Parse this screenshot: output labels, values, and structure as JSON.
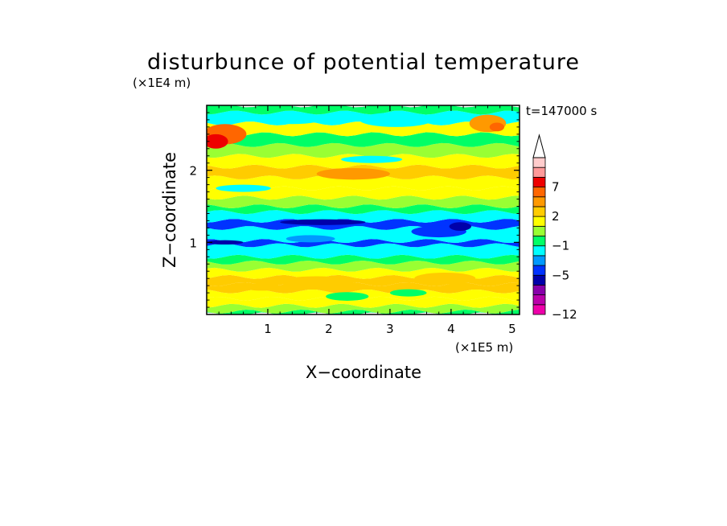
{
  "chart_data": {
    "type": "heatmap",
    "title": "disturbunce of potential temperature",
    "time_label": "t=147000 s",
    "xlabel": "X−coordinate",
    "ylabel": "Z−coordinate",
    "x_scale_label": "(×1E5 m)",
    "y_scale_label": "(×1E4 m)",
    "xlim": [
      0,
      5.12
    ],
    "ylim": [
      0,
      2.9
    ],
    "x_ticks": [
      1,
      2,
      3,
      4,
      5
    ],
    "x_tick_labels": [
      "1",
      "2",
      "3",
      "4",
      "5"
    ],
    "y_ticks": [
      1,
      2
    ],
    "y_tick_labels": [
      "1",
      "2"
    ],
    "colorbar": {
      "levels": [
        -12,
        -11,
        -9,
        -7,
        -5,
        -4,
        -3,
        -1,
        0,
        1,
        2,
        3,
        5,
        7,
        8,
        9
      ],
      "labeled_levels": [
        -12,
        -5,
        -1,
        2,
        7
      ],
      "labels": [
        "−12",
        "−5",
        "−1",
        "2",
        "7"
      ],
      "colors": [
        "#ee00aa",
        "#bb00aa",
        "#8800aa",
        "#0000aa",
        "#0033ff",
        "#0099ff",
        "#00ffff",
        "#00ff66",
        "#99ff33",
        "#ffff00",
        "#ffcc00",
        "#ff9900",
        "#ff6600",
        "#ee0000",
        "#ff9999",
        "#ffcccc"
      ],
      "extend": "max"
    },
    "bands": [
      {
        "z": [
          0.0,
          0.04
        ],
        "level": 7
      },
      {
        "z": [
          0.04,
          0.12
        ],
        "level": 8
      },
      {
        "z": [
          0.12,
          0.22
        ],
        "level": 9
      },
      {
        "z": [
          0.22,
          0.32
        ],
        "level": 9
      },
      {
        "z": [
          0.32,
          0.42
        ],
        "level": 10
      },
      {
        "z": [
          0.42,
          0.52
        ],
        "level": 10
      },
      {
        "z": [
          0.52,
          0.62
        ],
        "level": 9
      },
      {
        "z": [
          0.62,
          0.72
        ],
        "level": 8
      },
      {
        "z": [
          0.72,
          0.8
        ],
        "level": 7
      },
      {
        "z": [
          0.8,
          0.96
        ],
        "level": 6
      },
      {
        "z": [
          0.96,
          1.02
        ],
        "level": 4
      },
      {
        "z": [
          1.02,
          1.2
        ],
        "level": 6
      },
      {
        "z": [
          1.2,
          1.3
        ],
        "level": 4
      },
      {
        "z": [
          1.3,
          1.42
        ],
        "level": 6
      },
      {
        "z": [
          1.42,
          1.5
        ],
        "level": 7
      },
      {
        "z": [
          1.5,
          1.62
        ],
        "level": 8
      },
      {
        "z": [
          1.62,
          1.75
        ],
        "level": 9
      },
      {
        "z": [
          1.75,
          1.9
        ],
        "level": 9
      },
      {
        "z": [
          1.9,
          2.05
        ],
        "level": 10
      },
      {
        "z": [
          2.05,
          2.2
        ],
        "level": 9
      },
      {
        "z": [
          2.2,
          2.35
        ],
        "level": 8
      },
      {
        "z": [
          2.35,
          2.5
        ],
        "level": 7
      },
      {
        "z": [
          2.5,
          2.65
        ],
        "level": 9
      },
      {
        "z": [
          2.65,
          2.8
        ],
        "level": 6
      },
      {
        "z": [
          2.8,
          2.9
        ],
        "level": 7
      }
    ],
    "blobs": [
      {
        "x": 0.3,
        "z": 2.5,
        "rx": 0.35,
        "rz": 0.14,
        "level": 12
      },
      {
        "x": 0.15,
        "z": 2.4,
        "rx": 0.2,
        "rz": 0.1,
        "level": 13
      },
      {
        "x": 2.4,
        "z": 1.95,
        "rx": 0.6,
        "rz": 0.08,
        "level": 11
      },
      {
        "x": 4.6,
        "z": 2.65,
        "rx": 0.3,
        "rz": 0.12,
        "level": 11
      },
      {
        "x": 4.75,
        "z": 2.6,
        "rx": 0.12,
        "rz": 0.06,
        "level": 12
      },
      {
        "x": 1.4,
        "z": 2.72,
        "rx": 0.5,
        "rz": 0.08,
        "level": 6
      },
      {
        "x": 3.1,
        "z": 2.7,
        "rx": 0.6,
        "rz": 0.1,
        "level": 6
      },
      {
        "x": 0.6,
        "z": 1.75,
        "rx": 0.45,
        "rz": 0.05,
        "level": 6
      },
      {
        "x": 2.7,
        "z": 2.15,
        "rx": 0.5,
        "rz": 0.05,
        "level": 6
      },
      {
        "x": 1.8,
        "z": 0.45,
        "rx": 0.6,
        "rz": 0.08,
        "level": 10
      },
      {
        "x": 3.9,
        "z": 0.5,
        "rx": 0.5,
        "rz": 0.08,
        "level": 10
      },
      {
        "x": 0.9,
        "z": 0.38,
        "rx": 0.3,
        "rz": 0.05,
        "level": 10
      },
      {
        "x": 3.8,
        "z": 1.15,
        "rx": 0.45,
        "rz": 0.08,
        "level": 4
      },
      {
        "x": 4.15,
        "z": 1.22,
        "rx": 0.18,
        "rz": 0.06,
        "level": 3
      },
      {
        "x": 1.9,
        "z": 1.28,
        "rx": 0.7,
        "rz": 0.04,
        "level": 3
      },
      {
        "x": 0.3,
        "z": 1.0,
        "rx": 0.3,
        "rz": 0.03,
        "level": 3
      },
      {
        "x": 1.7,
        "z": 1.05,
        "rx": 0.4,
        "rz": 0.05,
        "level": 5
      },
      {
        "x": 2.3,
        "z": 0.25,
        "rx": 0.35,
        "rz": 0.06,
        "level": 7
      },
      {
        "x": 3.3,
        "z": 0.3,
        "rx": 0.3,
        "rz": 0.05,
        "level": 7
      }
    ]
  }
}
